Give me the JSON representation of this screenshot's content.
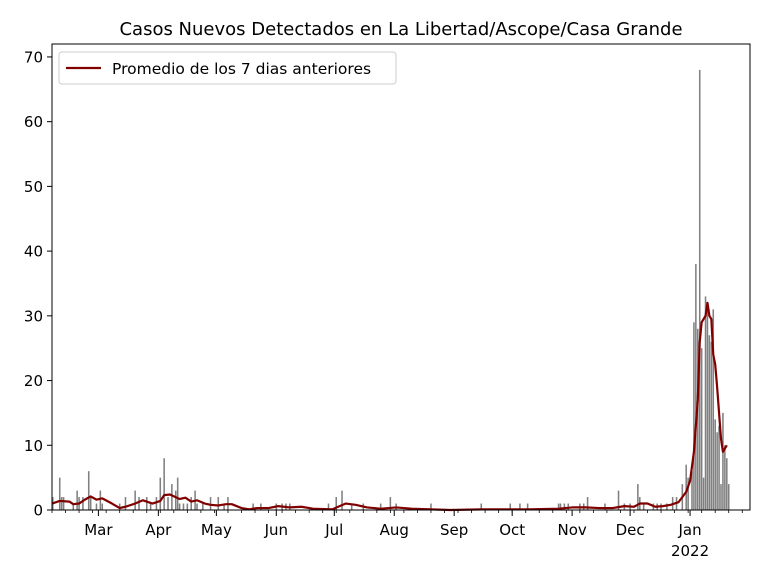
{
  "chart_data": {
    "type": "bar",
    "title": "Casos Nuevos Detectados en La Libertad/Ascope/Casa Grande",
    "xlabel": "",
    "ylabel": "",
    "ylim": [
      0,
      72
    ],
    "xlim": [
      "2021-02-05",
      "2022-02-01"
    ],
    "y_ticks": [
      0,
      10,
      20,
      30,
      40,
      50,
      60,
      70
    ],
    "x_ticks": [
      {
        "date": "2021-03-01",
        "label": "Mar"
      },
      {
        "date": "2021-04-01",
        "label": "Apr"
      },
      {
        "date": "2021-05-01",
        "label": "May"
      },
      {
        "date": "2021-06-01",
        "label": "Jun"
      },
      {
        "date": "2021-07-01",
        "label": "Jul"
      },
      {
        "date": "2021-08-01",
        "label": "Aug"
      },
      {
        "date": "2021-09-01",
        "label": "Sep"
      },
      {
        "date": "2021-10-01",
        "label": "Oct"
      },
      {
        "date": "2021-11-01",
        "label": "Nov"
      },
      {
        "date": "2021-12-01",
        "label": "Dec"
      },
      {
        "date": "2022-01-01",
        "label": "Jan",
        "sublabel": "2022"
      }
    ],
    "legend": {
      "position": "top-left",
      "entries": [
        "Promedio de los 7 dias anteriores"
      ]
    },
    "colors": {
      "bars": "#808080",
      "line": "#800000"
    },
    "series": [
      {
        "type": "bar",
        "points": [
          [
            "2021-02-05",
            2
          ],
          [
            "2021-02-09",
            5
          ],
          [
            "2021-02-10",
            2
          ],
          [
            "2021-02-11",
            2
          ],
          [
            "2021-02-16",
            1
          ],
          [
            "2021-02-18",
            3
          ],
          [
            "2021-02-19",
            2
          ],
          [
            "2021-02-21",
            2
          ],
          [
            "2021-02-24",
            6
          ],
          [
            "2021-02-25",
            2
          ],
          [
            "2021-02-28",
            1
          ],
          [
            "2021-03-02",
            3
          ],
          [
            "2021-03-03",
            1
          ],
          [
            "2021-03-12",
            1
          ],
          [
            "2021-03-15",
            2
          ],
          [
            "2021-03-20",
            3
          ],
          [
            "2021-03-22",
            2
          ],
          [
            "2021-03-26",
            2
          ],
          [
            "2021-03-28",
            1
          ],
          [
            "2021-03-31",
            2
          ],
          [
            "2021-04-02",
            5
          ],
          [
            "2021-04-04",
            8
          ],
          [
            "2021-04-06",
            2
          ],
          [
            "2021-04-08",
            4
          ],
          [
            "2021-04-10",
            3
          ],
          [
            "2021-04-11",
            5
          ],
          [
            "2021-04-12",
            1
          ],
          [
            "2021-04-14",
            1
          ],
          [
            "2021-04-16",
            1
          ],
          [
            "2021-04-18",
            2
          ],
          [
            "2021-04-20",
            3
          ],
          [
            "2021-04-21",
            1
          ],
          [
            "2021-04-24",
            1
          ],
          [
            "2021-04-28",
            2
          ],
          [
            "2021-05-02",
            2
          ],
          [
            "2021-05-05",
            1
          ],
          [
            "2021-05-07",
            2
          ],
          [
            "2021-05-20",
            1
          ],
          [
            "2021-05-24",
            1
          ],
          [
            "2021-06-01",
            1
          ],
          [
            "2021-06-04",
            1
          ],
          [
            "2021-06-06",
            1
          ],
          [
            "2021-06-08",
            1
          ],
          [
            "2021-06-28",
            1
          ],
          [
            "2021-07-02",
            2
          ],
          [
            "2021-07-05",
            3
          ],
          [
            "2021-07-10",
            1
          ],
          [
            "2021-07-16",
            1
          ],
          [
            "2021-07-25",
            1
          ],
          [
            "2021-07-30",
            2
          ],
          [
            "2021-08-02",
            1
          ],
          [
            "2021-08-20",
            1
          ],
          [
            "2021-09-15",
            1
          ],
          [
            "2021-09-30",
            1
          ],
          [
            "2021-10-05",
            1
          ],
          [
            "2021-10-09",
            1
          ],
          [
            "2021-10-25",
            1
          ],
          [
            "2021-10-26",
            1
          ],
          [
            "2021-10-28",
            1
          ],
          [
            "2021-10-30",
            1
          ],
          [
            "2021-11-05",
            1
          ],
          [
            "2021-11-07",
            1
          ],
          [
            "2021-11-09",
            2
          ],
          [
            "2021-11-18",
            1
          ],
          [
            "2021-11-25",
            3
          ],
          [
            "2021-11-28",
            1
          ],
          [
            "2021-12-01",
            1
          ],
          [
            "2021-12-05",
            4
          ],
          [
            "2021-12-06",
            2
          ],
          [
            "2021-12-08",
            1
          ],
          [
            "2021-12-13",
            1
          ],
          [
            "2021-12-15",
            1
          ],
          [
            "2021-12-17",
            1
          ],
          [
            "2021-12-20",
            1
          ],
          [
            "2021-12-23",
            2
          ],
          [
            "2021-12-25",
            2
          ],
          [
            "2021-12-28",
            4
          ],
          [
            "2021-12-30",
            7
          ],
          [
            "2021-12-31",
            5
          ],
          [
            "2022-01-02",
            6
          ],
          [
            "2022-01-03",
            29
          ],
          [
            "2022-01-04",
            38
          ],
          [
            "2022-01-05",
            28
          ],
          [
            "2022-01-06",
            68
          ],
          [
            "2022-01-07",
            25
          ],
          [
            "2022-01-08",
            5
          ],
          [
            "2022-01-09",
            33
          ],
          [
            "2022-01-10",
            32
          ],
          [
            "2022-01-11",
            27
          ],
          [
            "2022-01-12",
            26
          ],
          [
            "2022-01-13",
            31
          ],
          [
            "2022-01-14",
            14
          ],
          [
            "2022-01-15",
            12
          ],
          [
            "2022-01-16",
            13
          ],
          [
            "2022-01-17",
            4
          ],
          [
            "2022-01-18",
            15
          ],
          [
            "2022-01-19",
            10
          ],
          [
            "2022-01-20",
            8
          ],
          [
            "2022-01-21",
            4
          ]
        ]
      },
      {
        "type": "line",
        "name": "Promedio de los 7 dias anteriores",
        "points": [
          [
            "2021-02-05",
            1.0
          ],
          [
            "2021-02-09",
            1.4
          ],
          [
            "2021-02-14",
            1.3
          ],
          [
            "2021-02-16",
            0.9
          ],
          [
            "2021-02-19",
            1.0
          ],
          [
            "2021-02-22",
            1.6
          ],
          [
            "2021-02-25",
            2.1
          ],
          [
            "2021-02-28",
            1.6
          ],
          [
            "2021-03-03",
            1.8
          ],
          [
            "2021-03-08",
            1.0
          ],
          [
            "2021-03-12",
            0.3
          ],
          [
            "2021-03-15",
            0.5
          ],
          [
            "2021-03-20",
            1.0
          ],
          [
            "2021-03-24",
            1.5
          ],
          [
            "2021-03-29",
            1.0
          ],
          [
            "2021-04-02",
            1.4
          ],
          [
            "2021-04-04",
            2.3
          ],
          [
            "2021-04-07",
            2.4
          ],
          [
            "2021-04-12",
            1.7
          ],
          [
            "2021-04-15",
            1.9
          ],
          [
            "2021-04-18",
            1.3
          ],
          [
            "2021-04-21",
            1.5
          ],
          [
            "2021-04-25",
            1.0
          ],
          [
            "2021-04-28",
            0.8
          ],
          [
            "2021-05-02",
            0.7
          ],
          [
            "2021-05-06",
            0.9
          ],
          [
            "2021-05-09",
            0.9
          ],
          [
            "2021-05-14",
            0.3
          ],
          [
            "2021-05-18",
            0.1
          ],
          [
            "2021-05-22",
            0.3
          ],
          [
            "2021-05-28",
            0.3
          ],
          [
            "2021-06-02",
            0.6
          ],
          [
            "2021-06-08",
            0.4
          ],
          [
            "2021-06-14",
            0.5
          ],
          [
            "2021-06-20",
            0.2
          ],
          [
            "2021-06-30",
            0.1
          ],
          [
            "2021-07-03",
            0.5
          ],
          [
            "2021-07-07",
            1.0
          ],
          [
            "2021-07-12",
            0.8
          ],
          [
            "2021-07-18",
            0.4
          ],
          [
            "2021-07-25",
            0.2
          ],
          [
            "2021-08-02",
            0.4
          ],
          [
            "2021-08-10",
            0.2
          ],
          [
            "2021-08-20",
            0.1
          ],
          [
            "2021-08-30",
            0.0
          ],
          [
            "2021-09-15",
            0.1
          ],
          [
            "2021-09-30",
            0.1
          ],
          [
            "2021-10-10",
            0.1
          ],
          [
            "2021-10-25",
            0.2
          ],
          [
            "2021-11-01",
            0.4
          ],
          [
            "2021-11-08",
            0.4
          ],
          [
            "2021-11-15",
            0.3
          ],
          [
            "2021-11-22",
            0.3
          ],
          [
            "2021-11-28",
            0.6
          ],
          [
            "2021-12-03",
            0.5
          ],
          [
            "2021-12-06",
            1.0
          ],
          [
            "2021-12-10",
            1.0
          ],
          [
            "2021-12-14",
            0.5
          ],
          [
            "2021-12-18",
            0.6
          ],
          [
            "2021-12-22",
            0.8
          ],
          [
            "2021-12-26",
            1.2
          ],
          [
            "2021-12-30",
            2.8
          ],
          [
            "2022-01-01",
            4.5
          ],
          [
            "2022-01-03",
            9.0
          ],
          [
            "2022-01-05",
            17.0
          ],
          [
            "2022-01-06",
            26.0
          ],
          [
            "2022-01-07",
            29.0
          ],
          [
            "2022-01-08",
            29.5
          ],
          [
            "2022-01-09",
            30.0
          ],
          [
            "2022-01-10",
            32.0
          ],
          [
            "2022-01-11",
            30.0
          ],
          [
            "2022-01-12",
            29.5
          ],
          [
            "2022-01-13",
            24.0
          ],
          [
            "2022-01-14",
            22.5
          ],
          [
            "2022-01-15",
            19.0
          ],
          [
            "2022-01-16",
            15.0
          ],
          [
            "2022-01-17",
            11.0
          ],
          [
            "2022-01-18",
            9.0
          ],
          [
            "2022-01-19",
            9.5
          ],
          [
            "2022-01-20",
            10.0
          ]
        ]
      }
    ]
  }
}
